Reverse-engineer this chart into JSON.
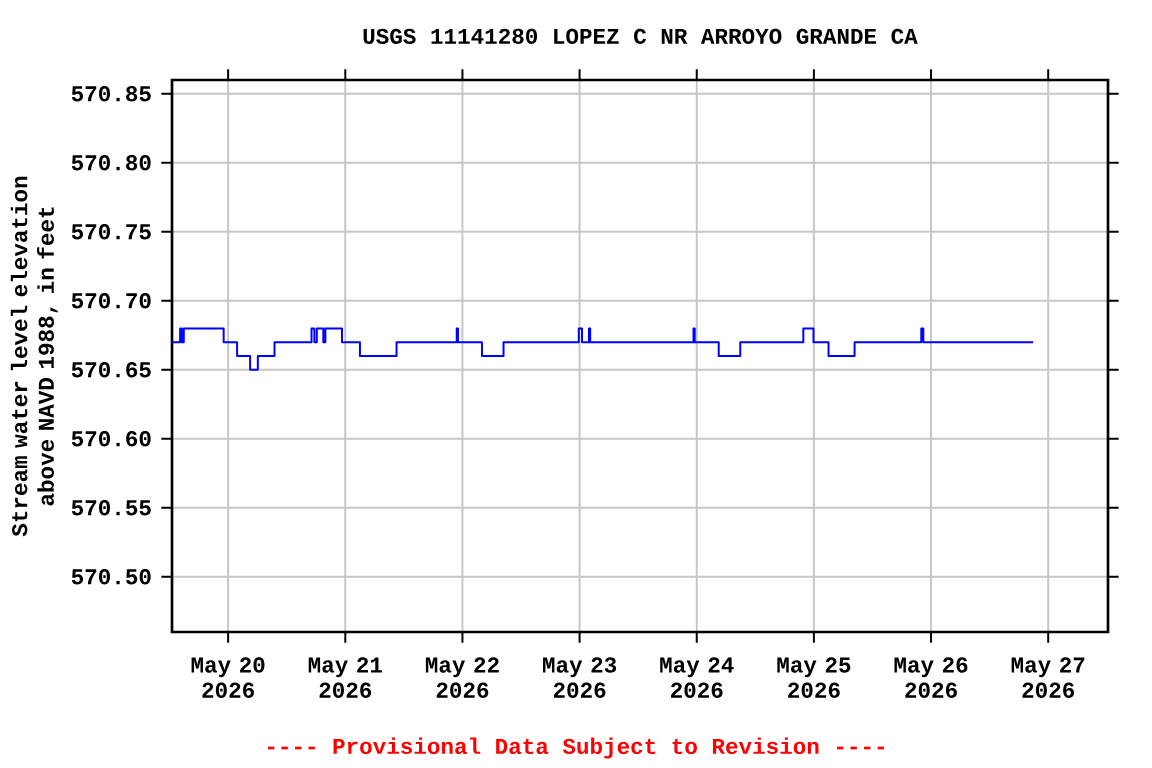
{
  "chart_data": {
    "type": "step",
    "title": "USGS 11141280 LOPEZ C NR ARROYO GRANDE CA",
    "ylabel": "Stream water level elevation above NAVD 1988, in feet",
    "annotations": [
      "---- Provisional Data Subject to Revision ----"
    ],
    "xlim": [
      "2026-05-19T12:30",
      "2026-05-27T12:15"
    ],
    "xticks": [
      {
        "value": "2026-05-20T00:00",
        "label": "May 20 2026"
      },
      {
        "value": "2026-05-21T00:00",
        "label": "May 21 2026"
      },
      {
        "value": "2026-05-22T00:00",
        "label": "May 22 2026"
      },
      {
        "value": "2026-05-23T00:00",
        "label": "May 23 2026"
      },
      {
        "value": "2026-05-24T00:00",
        "label": "May 24 2026"
      },
      {
        "value": "2026-05-25T00:00",
        "label": "May 25 2026"
      },
      {
        "value": "2026-05-26T00:00",
        "label": "May 26 2026"
      },
      {
        "value": "2026-05-27T00:00",
        "label": "May 27 2026"
      }
    ],
    "ylim": [
      570.46,
      570.86
    ],
    "yticks": [
      {
        "value": 570.5,
        "label": "570.50"
      },
      {
        "value": 570.55,
        "label": "570.55"
      },
      {
        "value": 570.6,
        "label": "570.60"
      },
      {
        "value": 570.65,
        "label": "570.65"
      },
      {
        "value": 570.7,
        "label": "570.70"
      },
      {
        "value": 570.75,
        "label": "570.75"
      },
      {
        "value": 570.8,
        "label": "570.80"
      },
      {
        "value": 570.85,
        "label": "570.85"
      }
    ],
    "grid": true,
    "series": [
      {
        "color": "#0000ff",
        "x": [
          "2026-05-19T12:30",
          "2026-05-19T14:10",
          "2026-05-19T14:30",
          "2026-05-19T14:55",
          "2026-05-19T23:05",
          "2026-05-20T01:50",
          "2026-05-20T04:30",
          "2026-05-20T06:05",
          "2026-05-20T09:30",
          "2026-05-20T17:05",
          "2026-05-20T17:40",
          "2026-05-20T18:10",
          "2026-05-20T19:30",
          "2026-05-20T19:55",
          "2026-05-20T23:20",
          "2026-05-21T03:00",
          "2026-05-21T10:30",
          "2026-05-21T22:50",
          "2026-05-21T23:05",
          "2026-05-22T04:00",
          "2026-05-22T08:25",
          "2026-05-22T23:50",
          "2026-05-23T00:30",
          "2026-05-23T01:55",
          "2026-05-23T02:10",
          "2026-05-23T23:20",
          "2026-05-23T23:35",
          "2026-05-24T04:30",
          "2026-05-24T08:55",
          "2026-05-24T21:50",
          "2026-05-24T23:55",
          "2026-05-25T03:00",
          "2026-05-25T08:20",
          "2026-05-25T22:00",
          "2026-05-25T22:25",
          "2026-05-26T20:55"
        ],
        "values": [
          570.67,
          570.68,
          570.67,
          570.68,
          570.67,
          570.66,
          570.65,
          570.66,
          570.67,
          570.68,
          570.67,
          570.68,
          570.67,
          570.68,
          570.67,
          570.66,
          570.67,
          570.68,
          570.67,
          570.66,
          570.67,
          570.68,
          570.67,
          570.68,
          570.67,
          570.68,
          570.67,
          570.66,
          570.67,
          570.68,
          570.67,
          570.66,
          570.67,
          570.68,
          570.67,
          570.67
        ]
      }
    ]
  }
}
